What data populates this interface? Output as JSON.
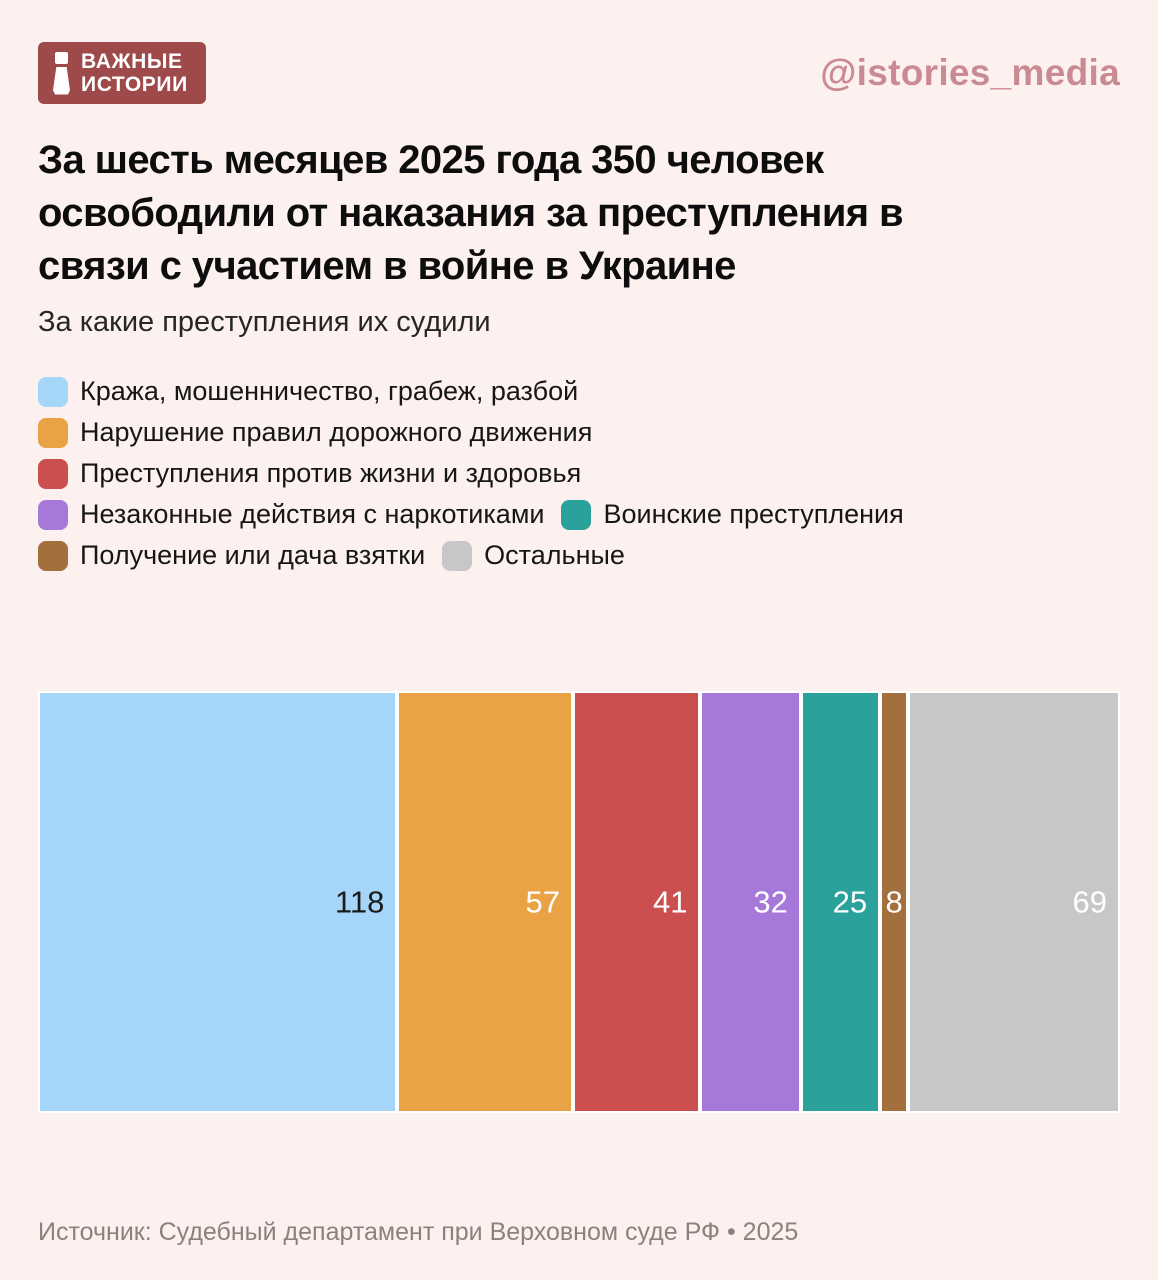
{
  "header": {
    "logo": {
      "line1": "ВАЖНЫЕ",
      "line2": "ИСТОРИИ",
      "bg_color": "#9E4A4A"
    },
    "handle": "@istories_media",
    "handle_color": "#CA8A91"
  },
  "title": "За шесть месяцев 2025 года 350 человек освободили от наказания за преступления в связи с участием в войне в Украине",
  "subtitle": "За какие преступления их судили",
  "chart_data": {
    "type": "bar",
    "variant": "horizontal-stacked",
    "total": 350,
    "title": "За шесть месяцев 2025 года 350 человек освободили от наказания за преступления в связи с участием в войне в Украине",
    "subtitle": "За какие преступления их судили",
    "legend_position": "top-left",
    "series": [
      {
        "name": "Кража, мошенничество, грабеж, разбой",
        "value": 118,
        "color": "#A5D5F8",
        "label_color": "#1A1A1A"
      },
      {
        "name": "Нарушение правил дорожного движения",
        "value": 57,
        "color": "#E9A344",
        "label_color": "#FFFFFF"
      },
      {
        "name": "Преступления против жизни и здоровья",
        "value": 41,
        "color": "#CC4F50",
        "label_color": "#FFFFFF"
      },
      {
        "name": "Незаконные действия с наркотиками",
        "value": 32,
        "color": "#A678DA",
        "label_color": "#FFFFFF"
      },
      {
        "name": "Воинские преступления",
        "value": 25,
        "color": "#2AA29B",
        "label_color": "#FFFFFF"
      },
      {
        "name": "Получение или дача взятки",
        "value": 8,
        "color": "#A36F3C",
        "label_color": "#FFFFFF"
      },
      {
        "name": "Остальные",
        "value": 69,
        "color": "#C7C7C7",
        "label_color": "#FFFFFF"
      }
    ]
  },
  "footer": {
    "source": "Источник: Судебный департамент при Верховном суде РФ • 2025"
  },
  "colors": {
    "background": "#FCF1EF",
    "bar_gap": "#FFFFFF",
    "title_text": "#0D0D0D",
    "footer_text": "#8C817D"
  }
}
